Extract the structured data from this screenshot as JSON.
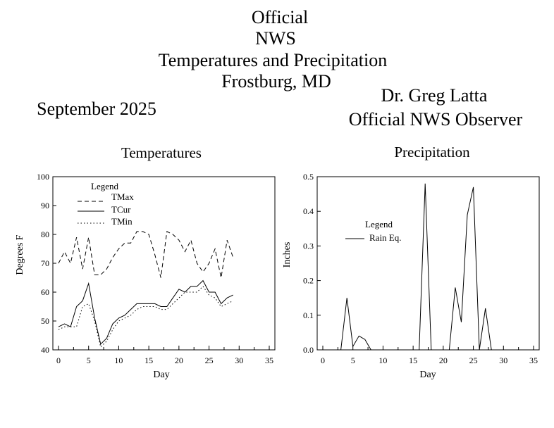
{
  "header": {
    "line1": "Official",
    "line2": "NWS",
    "line3": "Temperatures and Precipitation",
    "line4": "Frostburg, MD",
    "month": "September 2025",
    "observer": "Dr. Greg Latta",
    "observer_title": "Official NWS Observer"
  },
  "chart_data": [
    {
      "type": "line",
      "title": "Temperatures",
      "xlabel": "Day",
      "ylabel": "Degrees F",
      "xlim": [
        0,
        35
      ],
      "ylim": [
        40,
        100
      ],
      "xticks": [
        0,
        5,
        10,
        15,
        20,
        25,
        30,
        35
      ],
      "yticks": [
        40,
        50,
        60,
        70,
        80,
        90,
        100
      ],
      "legend_title": "Legend",
      "legend_position": "top-left",
      "series": [
        {
          "name": "TMax",
          "style": "dashed",
          "x": [
            0,
            1,
            2,
            3,
            4,
            5,
            6,
            7,
            8,
            9,
            10,
            11,
            12,
            13,
            14,
            15,
            16,
            17,
            18,
            19,
            20,
            21,
            22,
            23,
            24,
            25,
            26,
            27,
            28,
            29
          ],
          "values": [
            70,
            74,
            70,
            79,
            68,
            79,
            66,
            66,
            68,
            72,
            75,
            77,
            77,
            81,
            81,
            80,
            73,
            65,
            81,
            80,
            78,
            74,
            78,
            70,
            67,
            70,
            75,
            65,
            78,
            72
          ]
        },
        {
          "name": "TCur",
          "style": "solid",
          "x": [
            0,
            1,
            2,
            3,
            4,
            5,
            6,
            7,
            8,
            9,
            10,
            11,
            12,
            13,
            14,
            15,
            16,
            17,
            18,
            19,
            20,
            21,
            22,
            23,
            24,
            25,
            26,
            27,
            28,
            29
          ],
          "values": [
            48,
            49,
            48,
            55,
            57,
            63,
            51,
            42,
            44,
            49,
            51,
            52,
            54,
            56,
            56,
            56,
            56,
            55,
            55,
            58,
            61,
            60,
            62,
            62,
            64,
            60,
            60,
            56,
            58,
            59
          ]
        },
        {
          "name": "TMin",
          "style": "dotted",
          "x": [
            0,
            1,
            2,
            3,
            4,
            5,
            6,
            7,
            8,
            9,
            10,
            11,
            12,
            13,
            14,
            15,
            16,
            17,
            18,
            19,
            20,
            21,
            22,
            23,
            24,
            25,
            26,
            27,
            28,
            29
          ],
          "values": [
            47,
            48,
            48,
            48,
            55,
            56,
            50,
            41,
            43,
            47,
            50,
            51,
            52,
            54,
            55,
            55,
            55,
            54,
            54,
            56,
            58,
            60,
            60,
            60,
            62,
            59,
            58,
            55,
            56,
            57
          ]
        }
      ]
    },
    {
      "type": "line",
      "title": "Precipitation",
      "xlabel": "Day",
      "ylabel": "Inches",
      "xlim": [
        0,
        35
      ],
      "ylim": [
        0,
        0.5
      ],
      "xticks": [
        0,
        5,
        10,
        15,
        20,
        25,
        30,
        35
      ],
      "yticks": [
        "0.0",
        "0.1",
        "0.2",
        "0.3",
        "0.4",
        "0.5"
      ],
      "legend_title": "Legend",
      "legend_position": "middle-left",
      "series": [
        {
          "name": "Rain Eq.",
          "style": "solid",
          "x": [
            0,
            1,
            2,
            3,
            4,
            5,
            6,
            7,
            8,
            9,
            10,
            11,
            12,
            13,
            14,
            15,
            16,
            17,
            18,
            19,
            20,
            21,
            22,
            23,
            24,
            25,
            26,
            27,
            28,
            29
          ],
          "values": [
            0,
            0,
            0,
            0,
            0.15,
            0.01,
            0.04,
            0.03,
            0,
            0,
            0,
            0,
            0,
            0,
            0,
            0,
            0,
            0.48,
            0,
            0,
            0,
            0,
            0.18,
            0.08,
            0.39,
            0.47,
            0,
            0.12,
            0,
            0
          ]
        }
      ]
    }
  ]
}
